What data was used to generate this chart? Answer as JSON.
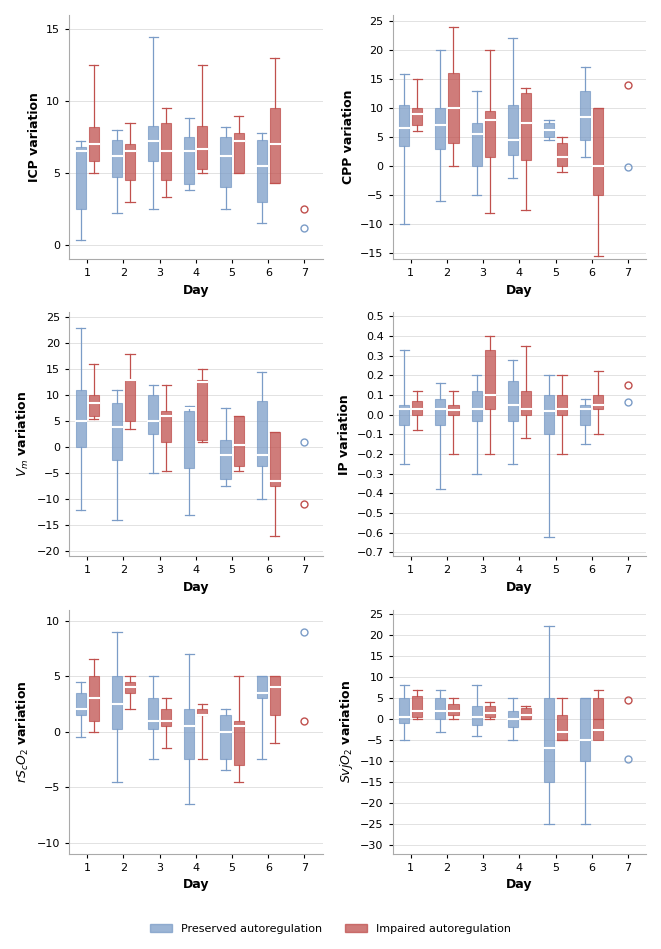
{
  "days": [
    1,
    2,
    3,
    4,
    5,
    6,
    7
  ],
  "preserved_color": "#7b9cc7",
  "impaired_color": "#c0504d",
  "plots": [
    {
      "ylabel": "ICP variation",
      "ylim": [
        -1,
        16
      ],
      "yticks": [
        0,
        5,
        10,
        15
      ],
      "invert_y": false,
      "preserved": {
        "whislo": [
          0.3,
          2.2,
          2.5,
          3.8,
          2.5,
          1.5,
          null
        ],
        "q1": [
          2.5,
          4.7,
          5.8,
          4.2,
          4.0,
          3.0,
          null
        ],
        "med": [
          6.5,
          6.2,
          7.2,
          6.5,
          6.2,
          5.5,
          null
        ],
        "q3": [
          6.8,
          7.3,
          8.3,
          7.5,
          7.5,
          7.3,
          null
        ],
        "whishi": [
          7.2,
          8.0,
          14.5,
          8.8,
          8.2,
          7.8,
          null
        ],
        "fliers": [
          null,
          null,
          null,
          null,
          null,
          null,
          1.2
        ]
      },
      "impaired": {
        "whislo": [
          5.0,
          3.0,
          3.3,
          5.0,
          5.0,
          4.3,
          null
        ],
        "q1": [
          5.8,
          4.5,
          4.5,
          5.3,
          5.0,
          4.3,
          null
        ],
        "med": [
          7.0,
          6.5,
          6.5,
          6.7,
          7.2,
          7.0,
          null
        ],
        "q3": [
          8.2,
          7.0,
          8.5,
          8.3,
          7.8,
          9.5,
          null
        ],
        "whishi": [
          12.5,
          8.5,
          9.5,
          12.5,
          9.0,
          13.0,
          null
        ],
        "fliers": [
          null,
          null,
          null,
          null,
          null,
          null,
          2.5
        ]
      }
    },
    {
      "ylabel": "CPP variation",
      "ylim": [
        -16,
        26
      ],
      "yticks": [
        -15,
        -10,
        -5,
        0,
        5,
        10,
        15,
        20,
        25
      ],
      "invert_y": false,
      "preserved": {
        "whislo": [
          -10.0,
          -6.0,
          -5.0,
          -2.0,
          4.5,
          1.5,
          null
        ],
        "q1": [
          3.5,
          3.0,
          0.0,
          2.0,
          5.0,
          4.5,
          null
        ],
        "med": [
          6.5,
          7.0,
          5.5,
          4.5,
          6.2,
          8.5,
          null
        ],
        "q3": [
          10.5,
          10.0,
          7.5,
          10.5,
          7.5,
          13.0,
          null
        ],
        "whishi": [
          15.8,
          20.0,
          13.0,
          22.0,
          8.0,
          17.0,
          null
        ],
        "fliers": [
          null,
          null,
          null,
          null,
          null,
          null,
          -0.2
        ]
      },
      "impaired": {
        "whislo": [
          6.0,
          0.0,
          -8.0,
          -7.5,
          -1.0,
          -15.5,
          null
        ],
        "q1": [
          7.0,
          4.0,
          1.5,
          1.0,
          0.0,
          -5.0,
          null
        ],
        "med": [
          9.0,
          10.0,
          8.0,
          7.5,
          1.5,
          0.0,
          null
        ],
        "q3": [
          10.0,
          16.0,
          9.5,
          12.5,
          4.0,
          10.0,
          null
        ],
        "whishi": [
          15.0,
          24.0,
          20.0,
          13.5,
          5.0,
          10.0,
          null
        ],
        "fliers": [
          null,
          null,
          null,
          null,
          null,
          null,
          14.0
        ]
      }
    },
    {
      "ylabel": "$V_m$ variation",
      "ylim": [
        -21,
        26
      ],
      "yticks": [
        -20,
        -15,
        -10,
        -5,
        0,
        5,
        10,
        15,
        20,
        25
      ],
      "invert_y": false,
      "preserved": {
        "whislo": [
          -12.0,
          -14.0,
          -5.0,
          -13.0,
          -7.5,
          -10.0,
          null
        ],
        "q1": [
          0.0,
          -2.5,
          2.5,
          -4.0,
          -6.0,
          -3.5,
          null
        ],
        "med": [
          5.0,
          4.0,
          5.0,
          7.5,
          -1.5,
          -1.5,
          null
        ],
        "q3": [
          11.0,
          8.5,
          10.0,
          7.0,
          1.5,
          9.0,
          null
        ],
        "whishi": [
          23.0,
          11.0,
          12.0,
          8.0,
          7.5,
          14.5,
          null
        ],
        "fliers": [
          null,
          null,
          null,
          null,
          null,
          null,
          1.0
        ]
      },
      "impaired": {
        "whislo": [
          5.5,
          3.5,
          -4.5,
          1.0,
          -4.5,
          -17.0,
          null
        ],
        "q1": [
          6.0,
          5.0,
          1.0,
          1.5,
          -3.5,
          -7.5,
          null
        ],
        "med": [
          8.5,
          13.0,
          6.0,
          12.5,
          0.5,
          -6.5,
          null
        ],
        "q3": [
          10.0,
          13.0,
          7.0,
          13.0,
          6.0,
          3.0,
          null
        ],
        "whishi": [
          16.0,
          18.0,
          12.0,
          15.0,
          6.0,
          3.0,
          null
        ],
        "fliers": [
          null,
          null,
          null,
          null,
          null,
          null,
          -11.0
        ]
      }
    },
    {
      "ylabel": "IP variation",
      "ylim": [
        -0.72,
        0.52
      ],
      "yticks": [
        -0.7,
        -0.6,
        -0.5,
        -0.4,
        -0.3,
        -0.2,
        -0.1,
        0.0,
        0.1,
        0.2,
        0.3,
        0.4,
        0.5
      ],
      "invert_y": true,
      "preserved": {
        "whislo": [
          0.33,
          0.16,
          0.2,
          0.28,
          0.2,
          0.08,
          null
        ],
        "q1": [
          0.05,
          0.08,
          0.12,
          0.17,
          0.1,
          0.05,
          null
        ],
        "med": [
          0.03,
          0.03,
          0.03,
          0.05,
          0.02,
          0.03,
          null
        ],
        "q3": [
          -0.05,
          -0.05,
          -0.03,
          -0.03,
          -0.1,
          -0.05,
          null
        ],
        "whishi": [
          -0.25,
          -0.38,
          -0.3,
          -0.25,
          -0.62,
          -0.15,
          null
        ],
        "fliers": [
          null,
          null,
          null,
          null,
          null,
          null,
          0.065
        ]
      },
      "impaired": {
        "whislo": [
          0.12,
          0.12,
          0.4,
          0.35,
          0.2,
          0.22,
          null
        ],
        "q1": [
          0.07,
          0.05,
          0.33,
          0.12,
          0.1,
          0.1,
          null
        ],
        "med": [
          0.03,
          0.025,
          0.1,
          0.03,
          0.03,
          0.05,
          null
        ],
        "q3": [
          0.0,
          0.0,
          0.03,
          0.0,
          0.0,
          0.03,
          null
        ],
        "whishi": [
          -0.08,
          -0.2,
          -0.2,
          -0.12,
          -0.2,
          -0.1,
          null
        ],
        "fliers": [
          null,
          null,
          null,
          null,
          null,
          null,
          0.15
        ]
      }
    },
    {
      "ylabel": "$rS_cO_2$ variation",
      "ylim": [
        -11,
        11
      ],
      "yticks": [
        -10,
        -5,
        0,
        5,
        10
      ],
      "invert_y": false,
      "preserved": {
        "whislo": [
          -0.5,
          -4.5,
          -2.5,
          -6.5,
          -3.5,
          -2.5,
          null
        ],
        "q1": [
          1.5,
          0.2,
          0.2,
          -2.5,
          -2.5,
          3.0,
          null
        ],
        "med": [
          2.0,
          2.5,
          1.0,
          0.5,
          0.0,
          3.5,
          null
        ],
        "q3": [
          3.5,
          5.0,
          3.0,
          2.0,
          1.5,
          5.0,
          null
        ],
        "whishi": [
          4.5,
          9.0,
          5.0,
          7.0,
          2.0,
          5.0,
          null
        ],
        "fliers": [
          null,
          null,
          null,
          null,
          null,
          null,
          9.0
        ]
      },
      "impaired": {
        "whislo": [
          0.0,
          2.0,
          -1.5,
          -2.5,
          -4.5,
          -1.0,
          null
        ],
        "q1": [
          1.0,
          3.5,
          0.5,
          1.5,
          -3.0,
          1.5,
          null
        ],
        "med": [
          3.0,
          4.0,
          1.0,
          1.5,
          0.5,
          4.0,
          null
        ],
        "q3": [
          5.0,
          4.5,
          2.0,
          2.0,
          1.0,
          5.0,
          null
        ],
        "whishi": [
          6.5,
          5.0,
          3.0,
          2.5,
          5.0,
          5.0,
          null
        ],
        "fliers": [
          null,
          null,
          null,
          null,
          null,
          null,
          1.0
        ]
      }
    },
    {
      "ylabel": "$SvjO_2$ variation",
      "ylim": [
        -32,
        26
      ],
      "yticks": [
        -30,
        -25,
        -20,
        -15,
        -10,
        -5,
        0,
        5,
        10,
        15,
        20,
        25
      ],
      "invert_y": false,
      "preserved": {
        "whislo": [
          -5.0,
          -3.0,
          -4.0,
          -5.0,
          -25.0,
          -25.0,
          null
        ],
        "q1": [
          -1.0,
          0.0,
          -1.5,
          -2.0,
          -15.0,
          -10.0,
          null
        ],
        "med": [
          0.5,
          2.0,
          0.5,
          0.0,
          -7.0,
          -5.0,
          null
        ],
        "q3": [
          5.0,
          5.0,
          3.0,
          2.0,
          5.0,
          5.0,
          null
        ],
        "whishi": [
          8.0,
          7.0,
          8.0,
          5.0,
          22.0,
          5.0,
          null
        ],
        "fliers": [
          null,
          null,
          null,
          null,
          null,
          null,
          -9.5
        ]
      },
      "impaired": {
        "whislo": [
          0.0,
          0.0,
          0.0,
          0.0,
          -5.0,
          0.0,
          null
        ],
        "q1": [
          0.5,
          1.0,
          0.5,
          0.0,
          -5.0,
          -5.0,
          null
        ],
        "med": [
          2.0,
          2.0,
          1.5,
          1.0,
          -3.0,
          -2.5,
          null
        ],
        "q3": [
          5.5,
          3.5,
          3.0,
          2.5,
          1.0,
          5.0,
          null
        ],
        "whishi": [
          7.0,
          5.0,
          4.0,
          3.0,
          5.0,
          7.0,
          null
        ],
        "fliers": [
          null,
          null,
          null,
          null,
          null,
          null,
          4.5
        ]
      }
    }
  ],
  "legend": {
    "preserved_label": "Preserved autoregulation",
    "impaired_label": "Impaired autoregulation"
  }
}
